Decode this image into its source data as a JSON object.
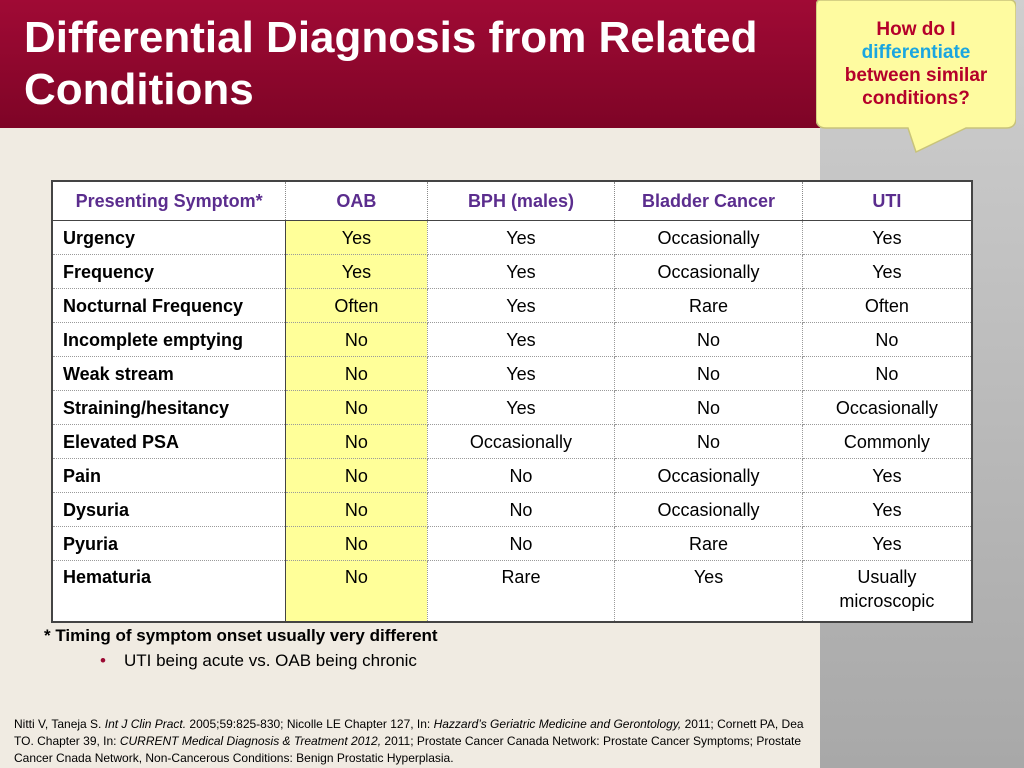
{
  "title": "Differential Diagnosis from Related Conditions",
  "callout": {
    "line1": "How do I",
    "highlight": "differentiate",
    "line3": "between similar conditions?"
  },
  "table": {
    "headers": [
      "Presenting Symptom*",
      "OAB",
      "BPH (males)",
      "Bladder Cancer",
      "UTI"
    ],
    "rows": [
      [
        "Urgency",
        "Yes",
        "Yes",
        "Occasionally",
        "Yes"
      ],
      [
        "Frequency",
        "Yes",
        "Yes",
        "Occasionally",
        "Yes"
      ],
      [
        "Nocturnal Frequency",
        "Often",
        "Yes",
        "Rare",
        "Often"
      ],
      [
        "Incomplete emptying",
        "No",
        "Yes",
        "No",
        "No"
      ],
      [
        "Weak stream",
        "No",
        "Yes",
        "No",
        "No"
      ],
      [
        "Straining/hesitancy",
        "No",
        "Yes",
        "No",
        "Occasionally"
      ],
      [
        "Elevated PSA",
        "No",
        "Occasionally",
        "No",
        "Commonly"
      ],
      [
        "Pain",
        "No",
        "No",
        "Occasionally",
        "Yes"
      ],
      [
        "Dysuria",
        "No",
        "No",
        "Occasionally",
        "Yes"
      ],
      [
        "Pyuria",
        "No",
        "No",
        "Rare",
        "Yes"
      ],
      [
        "Hematuria",
        "No",
        "Rare",
        "Yes",
        "Usually microscopic"
      ]
    ]
  },
  "footnote": "* Timing of symptom onset usually very different",
  "bullet": "UTI being acute vs. OAB being chronic",
  "references": {
    "p1": "Nitti V, Taneja S. ",
    "i1": "Int J Clin Pract.",
    "p2": " 2005;59:825-830; Nicolle LE Chapter 127, In: ",
    "i2": "Hazzard’s Geriatric Medicine and Gerontology,",
    "p3": " 2011; Cornett PA, Dea TO. Chapter 39, In: ",
    "i3": "CURRENT Medical Diagnosis & Treatment 2012,",
    "p4": " 2011;  Prostate Cancer Canada Network: Prostate Cancer Symptoms; Prostate Cancer Cnada Network, Non-Cancerous Conditions: Benign Prostatic Hyperplasia."
  }
}
